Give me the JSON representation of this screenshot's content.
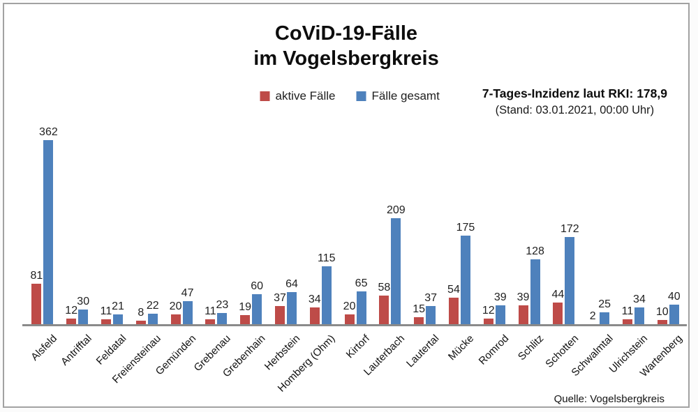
{
  "title": {
    "line1": "CoViD-19-Fälle",
    "line2": "im Vogelsbergkreis"
  },
  "legend": [
    {
      "label": "aktive Fälle",
      "color": "#be4b48"
    },
    {
      "label": "Fälle gesamt",
      "color": "#4e81bc"
    }
  ],
  "annotation": {
    "line1": "7-Tages-Inzidenz laut RKI: 178,9",
    "line2": "(Stand: 03.01.2021, 00:00 Uhr)"
  },
  "source": "Quelle: Vogelsbergkreis",
  "colors": {
    "active": "#be4b48",
    "total": "#4e81bc",
    "axis": "#8a8a8a",
    "frame_border": "#a2a2a2"
  },
  "chart_data": {
    "type": "bar",
    "title": "CoViD-19-Fälle im Vogelsbergkreis",
    "categories": [
      "Alsfeld",
      "Antrifftal",
      "Feldatal",
      "Freiensteinau",
      "Gemünden",
      "Grebenau",
      "Grebenhain",
      "Herbstein",
      "Homberg (Ohm)",
      "Kirtorf",
      "Lauterbach",
      "Lautertal",
      "Mücke",
      "Romrod",
      "Schlitz",
      "Schotten",
      "Schwalmtal",
      "Ulrichstein",
      "Wartenberg"
    ],
    "series": [
      {
        "name": "aktive Fälle",
        "color": "#be4b48",
        "values": [
          81,
          12,
          11,
          8,
          20,
          11,
          19,
          37,
          34,
          20,
          58,
          15,
          54,
          12,
          39,
          44,
          2,
          11,
          10
        ]
      },
      {
        "name": "Fälle gesamt",
        "color": "#4e81bc",
        "values": [
          362,
          30,
          21,
          22,
          47,
          23,
          60,
          64,
          115,
          65,
          209,
          37,
          175,
          39,
          128,
          172,
          25,
          34,
          40
        ]
      }
    ],
    "ylim": [
      0,
      362
    ],
    "xlabel": "",
    "ylabel": "",
    "grid": false,
    "legend_position": "top",
    "value_labels": true,
    "xlabel_rotation": 45
  }
}
